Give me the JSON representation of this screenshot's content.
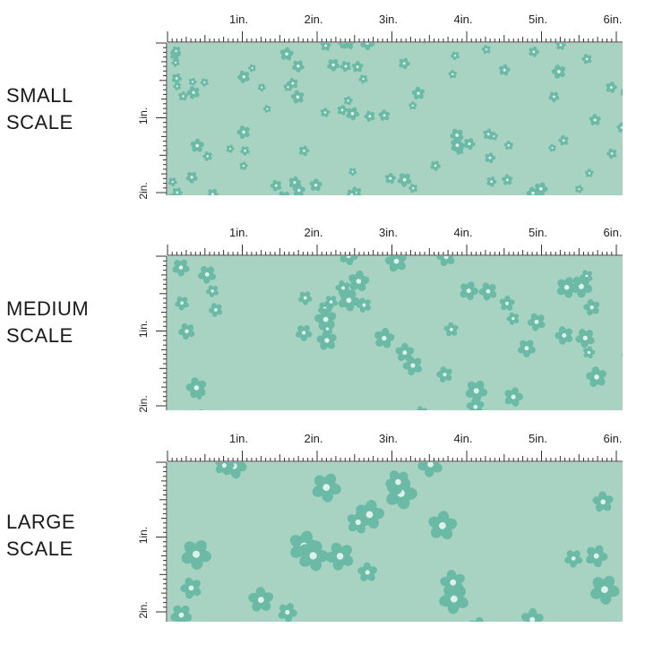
{
  "colors": {
    "fabric": "#a8d3c3",
    "flower": "#6bbaa6",
    "flower_center": "#dff0ea",
    "ruler_line": "#333333"
  },
  "ruler": {
    "top_labels": [
      "1in.",
      "2in.",
      "3in.",
      "4in.",
      "5in.",
      "6in."
    ],
    "side_labels": [
      "1in.",
      "2in."
    ]
  },
  "panels": [
    {
      "id": "small",
      "label_line1": "SMALL",
      "label_line2": "SCALE",
      "pattern_scale": 0.55
    },
    {
      "id": "medium",
      "label_line1": "MEDIUM",
      "label_line2": "SCALE",
      "pattern_scale": 0.85
    },
    {
      "id": "large",
      "label_line1": "LARGE",
      "label_line2": "SCALE",
      "pattern_scale": 1.25
    }
  ],
  "pattern": {
    "name": "floral-icon",
    "flower_icon": "five-petal-flower-icon"
  }
}
